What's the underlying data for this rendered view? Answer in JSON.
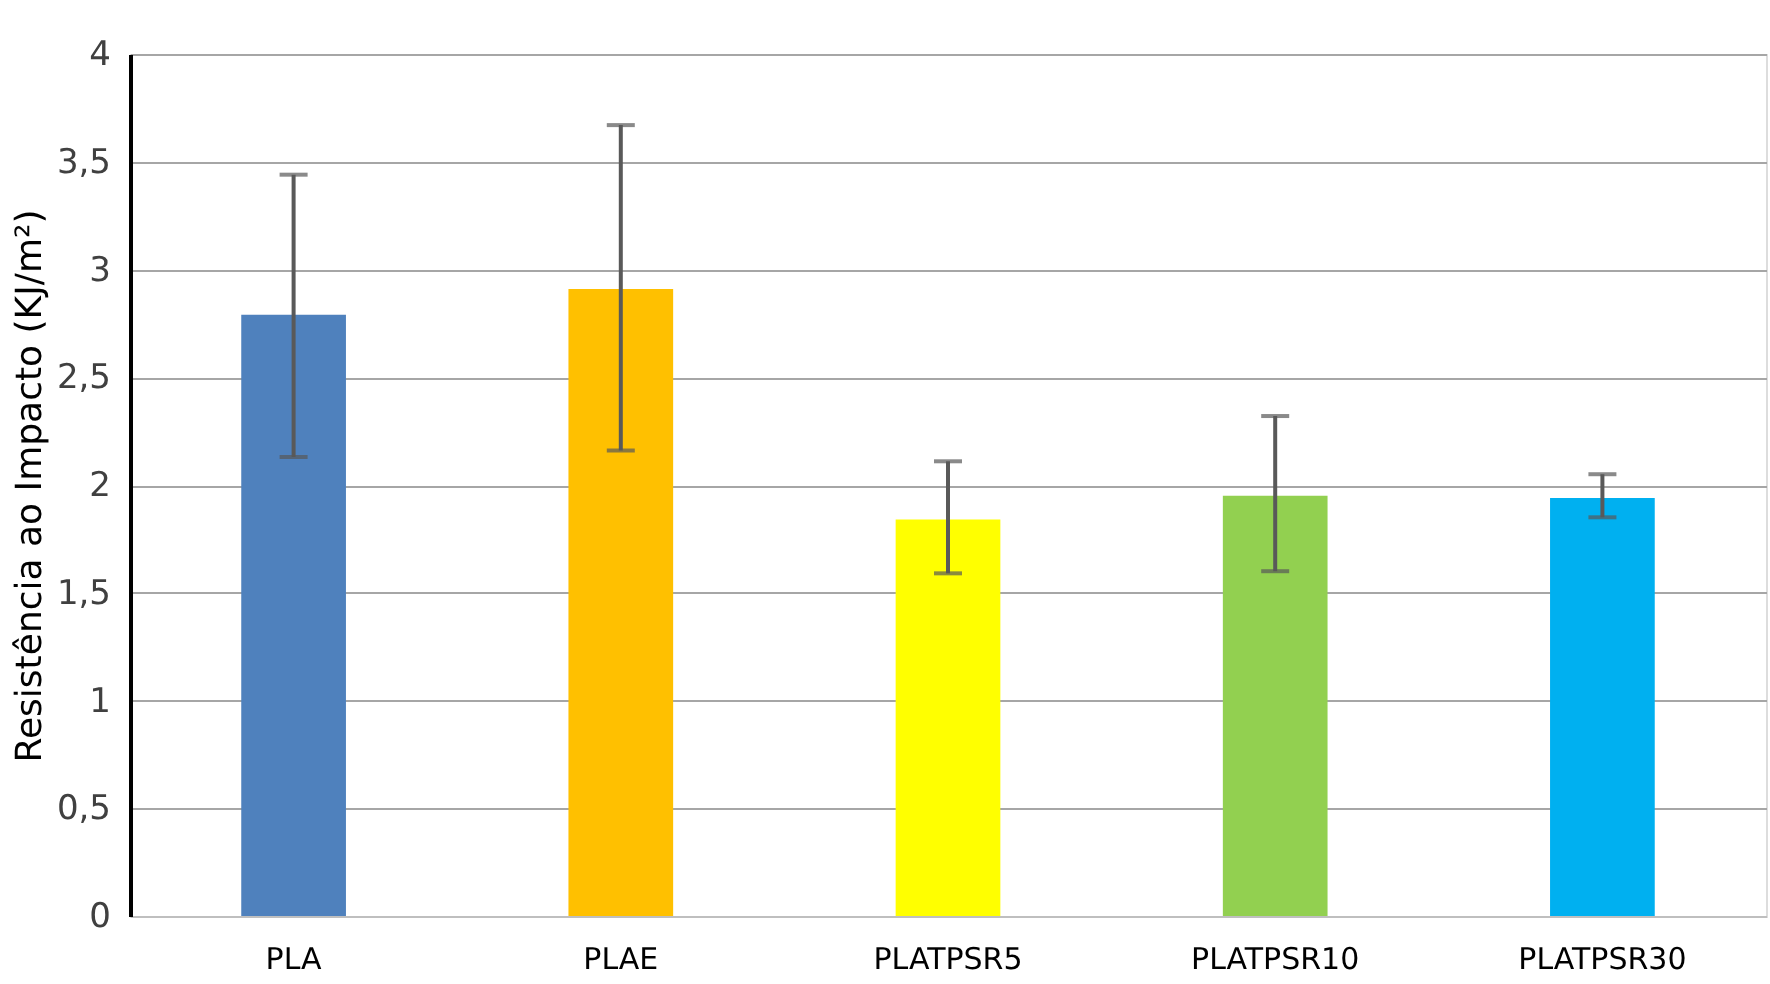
{
  "chart_data": {
    "type": "bar",
    "ylabel": "Resistência ao Impacto (KJ/m²)",
    "categories": [
      "PLA",
      "PLAE",
      "PLATPSR5",
      "PLATPSR10",
      "PLATPSR30"
    ],
    "values": [
      2.79,
      2.91,
      1.84,
      1.95,
      1.94
    ],
    "colors": [
      "#4f81bd",
      "#ffc000",
      "#ffff00",
      "#92d050",
      "#00b0f0"
    ],
    "errors": [
      [
        2.13,
        3.44
      ],
      [
        2.16,
        3.67
      ],
      [
        1.59,
        2.11
      ],
      [
        1.6,
        2.32
      ],
      [
        1.85,
        2.05
      ]
    ],
    "ylim": [
      0,
      4
    ],
    "yticks": [
      0,
      {
        "value": 0.5,
        "label": "0,5"
      },
      1,
      {
        "value": 1.5,
        "label": "1,5"
      },
      2,
      {
        "value": 2.5,
        "label": "2,5"
      },
      3,
      {
        "value": 3.5,
        "label": "3,5"
      },
      4
    ],
    "grid": "y"
  }
}
